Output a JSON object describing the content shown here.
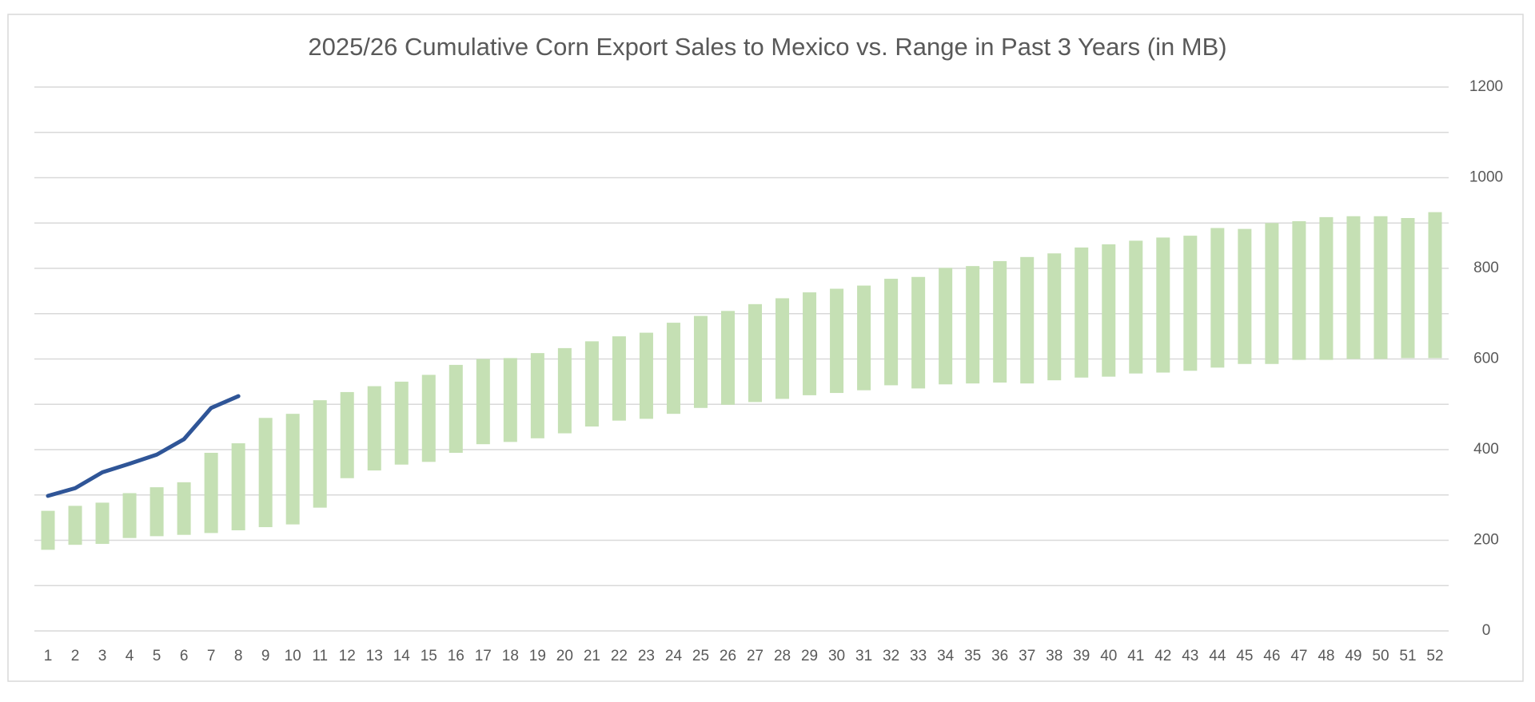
{
  "chart_data": {
    "type": "combo",
    "title": "2025/26 Cumulative Corn Export Sales to Mexico vs. Range in Past 3 Years (in MB)",
    "categories": [
      "1",
      "2",
      "3",
      "4",
      "5",
      "6",
      "7",
      "8",
      "9",
      "10",
      "11",
      "12",
      "13",
      "14",
      "15",
      "16",
      "17",
      "18",
      "19",
      "20",
      "21",
      "22",
      "23",
      "24",
      "25",
      "26",
      "27",
      "28",
      "29",
      "30",
      "31",
      "32",
      "33",
      "34",
      "35",
      "36",
      "37",
      "38",
      "39",
      "40",
      "41",
      "42",
      "43",
      "44",
      "45",
      "46",
      "47",
      "48",
      "49",
      "50",
      "51",
      "52"
    ],
    "series": [
      {
        "type": "range_bar",
        "color": "#c5e0b4",
        "values": [
          [
            179,
            265
          ],
          [
            190,
            276
          ],
          [
            192,
            283
          ],
          [
            205,
            304
          ],
          [
            209,
            317
          ],
          [
            212,
            328
          ],
          [
            216,
            393
          ],
          [
            222,
            414
          ],
          [
            229,
            470
          ],
          [
            235,
            479
          ],
          [
            272,
            509
          ],
          [
            337,
            527
          ],
          [
            354,
            540
          ],
          [
            367,
            550
          ],
          [
            373,
            565
          ],
          [
            393,
            587
          ],
          [
            412,
            600
          ],
          [
            417,
            602
          ],
          [
            425,
            613
          ],
          [
            436,
            624
          ],
          [
            451,
            639
          ],
          [
            464,
            650
          ],
          [
            468,
            658
          ],
          [
            479,
            680
          ],
          [
            492,
            695
          ],
          [
            499,
            706
          ],
          [
            505,
            721
          ],
          [
            512,
            734
          ],
          [
            520,
            747
          ],
          [
            525,
            755
          ],
          [
            531,
            762
          ],
          [
            542,
            777
          ],
          [
            535,
            781
          ],
          [
            544,
            801
          ],
          [
            546,
            805
          ],
          [
            548,
            816
          ],
          [
            546,
            825
          ],
          [
            553,
            833
          ],
          [
            559,
            846
          ],
          [
            561,
            853
          ],
          [
            568,
            861
          ],
          [
            570,
            868
          ],
          [
            574,
            872
          ],
          [
            581,
            889
          ],
          [
            589,
            887
          ],
          [
            589,
            900
          ],
          [
            598,
            904
          ],
          [
            598,
            913
          ],
          [
            600,
            915
          ],
          [
            600,
            915
          ],
          [
            602,
            911
          ],
          [
            602,
            924
          ]
        ]
      },
      {
        "type": "line",
        "color": "#2f5597",
        "values": [
          298,
          315,
          350,
          369,
          389,
          423,
          492,
          518,
          null,
          null,
          null,
          null,
          null,
          null,
          null,
          null,
          null,
          null,
          null,
          null,
          null,
          null,
          null,
          null,
          null,
          null,
          null,
          null,
          null,
          null,
          null,
          null,
          null,
          null,
          null,
          null,
          null,
          null,
          null,
          null,
          null,
          null,
          null,
          null,
          null,
          null,
          null,
          null,
          null,
          null,
          null,
          null
        ]
      }
    ],
    "ylim": [
      0,
      1200
    ],
    "yticks": [
      0,
      200,
      400,
      600,
      800,
      1000,
      1200
    ],
    "minor_yticks": [
      100,
      300,
      500,
      700,
      900,
      1100
    ],
    "grid": true,
    "y_axis_side": "right"
  }
}
